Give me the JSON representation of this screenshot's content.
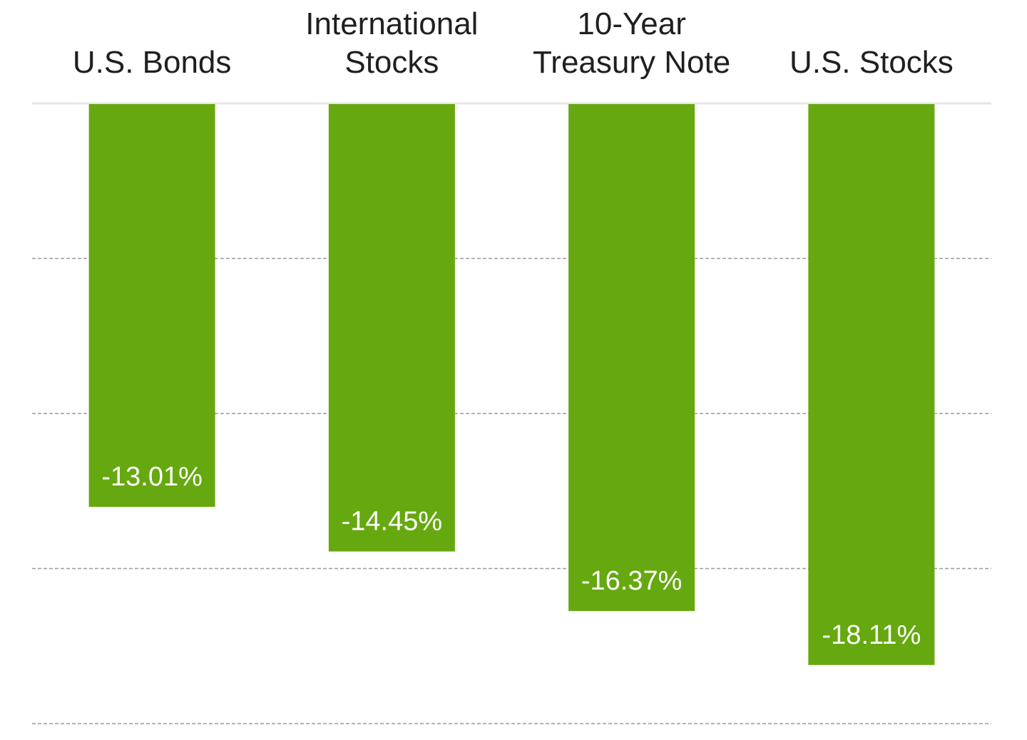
{
  "chart_data": {
    "type": "bar",
    "orientation": "vertical",
    "categories": [
      [
        "U.S. Bonds"
      ],
      [
        "International",
        "Stocks"
      ],
      [
        "10-Year",
        "Treasury Note"
      ],
      [
        "U.S. Stocks"
      ]
    ],
    "values": [
      -13.01,
      -14.45,
      -16.37,
      -18.11
    ],
    "value_labels": [
      "-13.01%",
      "-14.45%",
      "-16.37%",
      "-18.11%"
    ],
    "ylim": [
      -20,
      0
    ],
    "gridlines": [
      -5,
      -10,
      -15,
      -20
    ],
    "category_labels_position": "top",
    "grid": true,
    "colors": {
      "bar": "#66a80f",
      "zero_line": "#e6e6e6",
      "grid": "#9a9a9a",
      "label": "#1f1f1f",
      "value_label": "#ffffff"
    }
  }
}
